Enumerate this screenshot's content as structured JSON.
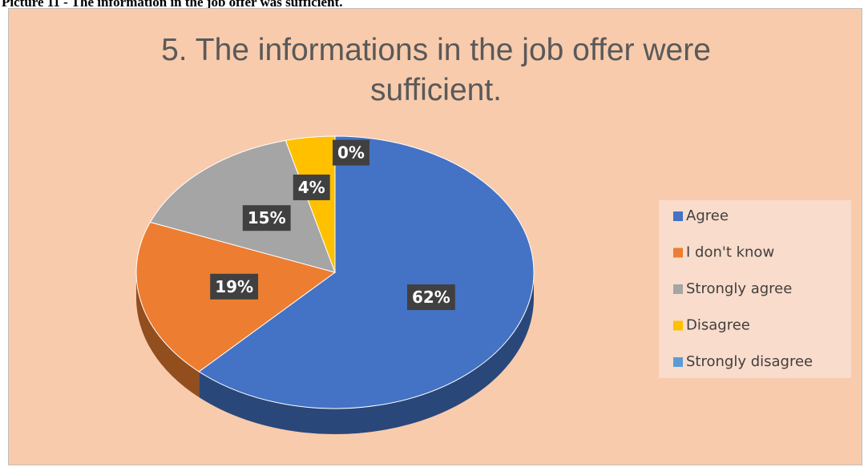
{
  "caption": "Picture 11 - The information in the job offer was sufficient.",
  "chart_data": {
    "type": "pie",
    "title": "5. The informations in the job offer were sufficient.",
    "categories": [
      "Agree",
      "I don't know",
      "Strongly agree",
      "Disagree",
      "Strongly disagree"
    ],
    "values": [
      62,
      19,
      15,
      4,
      0
    ],
    "value_labels": [
      "62%",
      "19%",
      "15%",
      "4%",
      "0%"
    ],
    "colors": [
      "#4472c4",
      "#ed7d31",
      "#a5a5a5",
      "#ffc000",
      "#5b9bd5"
    ],
    "legend": "right"
  }
}
